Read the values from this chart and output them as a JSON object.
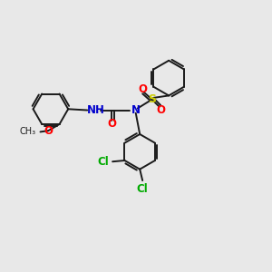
{
  "background_color": "#e8e8e8",
  "bond_color": "#1a1a1a",
  "atom_colors": {
    "N": "#0000cc",
    "O": "#ff0000",
    "S": "#cccc00",
    "Cl": "#00aa00",
    "C": "#1a1a1a"
  },
  "figsize": [
    3.0,
    3.0
  ],
  "dpi": 100,
  "xlim": [
    0,
    12
  ],
  "ylim": [
    0,
    12
  ]
}
